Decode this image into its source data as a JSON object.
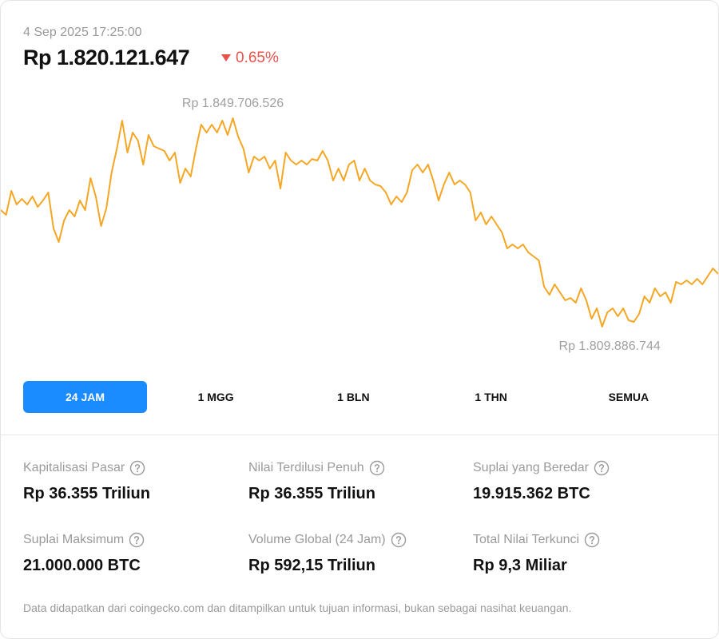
{
  "header": {
    "date": "4 Sep 2025 17:25:00",
    "price": "Rp 1.820.121.647",
    "change": "0.65%"
  },
  "chart_data": {
    "type": "line",
    "color": "#f5a623",
    "values": [
      1832161000,
      1831246000,
      1835823000,
      1833230000,
      1834298000,
      1833230000,
      1834755000,
      1832772000,
      1833992000,
      1835518000,
      1828653000,
      1826059000,
      1830178000,
      1832161000,
      1830941000,
      1833992000,
      1832161000,
      1838264000,
      1834755000,
      1829110000,
      1832467000,
      1839332000,
      1843909000,
      1849249000,
      1843146000,
      1846960000,
      1845435000,
      1840858000,
      1846503000,
      1844367000,
      1843909000,
      1843451000,
      1841621000,
      1843146000,
      1837349000,
      1840095000,
      1838569000,
      1843909000,
      1848486000,
      1846960000,
      1848486000,
      1846960000,
      1849249000,
      1846503000,
      1849706526,
      1846198000,
      1843909000,
      1839332000,
      1842383000,
      1841621000,
      1842383000,
      1840095000,
      1841621000,
      1836281000,
      1843146000,
      1841621000,
      1840858000,
      1841621000,
      1840858000,
      1841926000,
      1841621000,
      1843451000,
      1841621000,
      1837806000,
      1840095000,
      1837806000,
      1840858000,
      1841621000,
      1837806000,
      1840095000,
      1837806000,
      1837044000,
      1836738000,
      1835518000,
      1833230000,
      1834755000,
      1833687000,
      1835518000,
      1839790000,
      1840858000,
      1839332000,
      1840858000,
      1837806000,
      1833992000,
      1837044000,
      1839332000,
      1837044000,
      1837806000,
      1837044000,
      1835518000,
      1830178000,
      1831704000,
      1829415000,
      1830941000,
      1829415000,
      1827890000,
      1824838000,
      1825601000,
      1824838000,
      1825601000,
      1824076000,
      1823313000,
      1822550000,
      1817515000,
      1815990000,
      1817973000,
      1816447000,
      1814922000,
      1815380000,
      1814464000,
      1817210000,
      1814922000,
      1811413000,
      1813396000,
      1809886744,
      1812633000,
      1813396000,
      1811870000,
      1813396000,
      1811108000,
      1810802000,
      1812328000,
      1815685000,
      1814464000,
      1817210000,
      1815685000,
      1816447000,
      1814464000,
      1818431000,
      1817973000,
      1818736000,
      1817973000,
      1819041000,
      1817973000,
      1819499000,
      1821024000,
      1819956000
    ],
    "annotations": [
      {
        "value": 1849706526,
        "label": "Rp 1.849.706.526"
      },
      {
        "value": 1809886744,
        "label": "Rp 1.809.886.744"
      }
    ]
  },
  "tabs": [
    "24 JAM",
    "1 MGG",
    "1 BLN",
    "1 THN",
    "SEMUA"
  ],
  "stats": [
    {
      "label": "Kapitalisasi Pasar",
      "value": "Rp 36.355 Triliun"
    },
    {
      "label": "Nilai Terdilusi Penuh",
      "value": "Rp 36.355 Triliun"
    },
    {
      "label": "Suplai yang Beredar",
      "value": "19.915.362 BTC"
    },
    {
      "label": "Suplai Maksimum",
      "value": "21.000.000 BTC"
    },
    {
      "label": "Volume Global (24 Jam)",
      "value": "Rp 592,15 Triliun"
    },
    {
      "label": "Total Nilai Terkunci",
      "value": "Rp 9,3 Miliar"
    }
  ],
  "footer": "Data didapatkan dari coingecko.com dan ditampilkan untuk tujuan informasi, bukan sebagai nasihat keuangan."
}
